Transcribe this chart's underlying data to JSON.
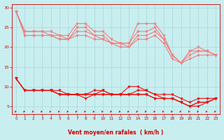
{
  "x": [
    0,
    1,
    2,
    3,
    4,
    5,
    6,
    7,
    8,
    9,
    10,
    11,
    12,
    13,
    14,
    15,
    16,
    17,
    18,
    19,
    20,
    21,
    22,
    23
  ],
  "series_upper_1": [
    29,
    24,
    24,
    24,
    24,
    23,
    23,
    26,
    26,
    24,
    24,
    22,
    21,
    21,
    26,
    26,
    26,
    23,
    18,
    16,
    19,
    20,
    19,
    18
  ],
  "series_upper_2": [
    29,
    24,
    24,
    24,
    23,
    23,
    22,
    25,
    25,
    23,
    23,
    21,
    21,
    21,
    24,
    24,
    25,
    22,
    18,
    16,
    19,
    19,
    19,
    18
  ],
  "series_upper_3": [
    29,
    23,
    23,
    23,
    23,
    22,
    22,
    24,
    24,
    23,
    22,
    21,
    21,
    20,
    23,
    23,
    24,
    22,
    18,
    16,
    18,
    19,
    19,
    18
  ],
  "series_upper_4": [
    29,
    23,
    23,
    23,
    23,
    22,
    22,
    23,
    23,
    22,
    22,
    21,
    20,
    20,
    22,
    22,
    23,
    21,
    17,
    16,
    17,
    18,
    18,
    18
  ],
  "series_lower_1": [
    12,
    9,
    9,
    9,
    9,
    9,
    8,
    8,
    8,
    9,
    9,
    8,
    8,
    10,
    10,
    9,
    8,
    8,
    8,
    7,
    6,
    7,
    7,
    7
  ],
  "series_lower_2": [
    12,
    9,
    9,
    9,
    9,
    8,
    8,
    8,
    8,
    8,
    9,
    8,
    8,
    8,
    9,
    9,
    8,
    7,
    7,
    6,
    5,
    6,
    6,
    7
  ],
  "series_lower_3": [
    12,
    9,
    9,
    9,
    9,
    8,
    8,
    8,
    8,
    8,
    8,
    8,
    8,
    8,
    8,
    8,
    7,
    7,
    7,
    6,
    5,
    6,
    6,
    7
  ],
  "series_lower_4": [
    12,
    9,
    9,
    9,
    9,
    8,
    8,
    8,
    7,
    8,
    8,
    8,
    8,
    8,
    8,
    8,
    7,
    7,
    7,
    6,
    5,
    5,
    6,
    7
  ],
  "color_upper": "#f08080",
  "color_lower": "#ee1111",
  "bg_color": "#c8eef0",
  "grid_color": "#a8d8da",
  "axis_color": "#cc0000",
  "tick_color": "#cc0000",
  "xlabel": "Vent moyen/en rafales  ( km/h )",
  "xlim": [
    -0.5,
    23.5
  ],
  "ylim": [
    3,
    31
  ],
  "yticks": [
    5,
    10,
    15,
    20,
    25,
    30
  ],
  "xticks": [
    0,
    1,
    2,
    3,
    4,
    5,
    6,
    7,
    8,
    9,
    10,
    11,
    12,
    13,
    14,
    15,
    16,
    17,
    18,
    19,
    20,
    21,
    22,
    23
  ],
  "marker_size": 2.5,
  "linewidth": 0.8
}
